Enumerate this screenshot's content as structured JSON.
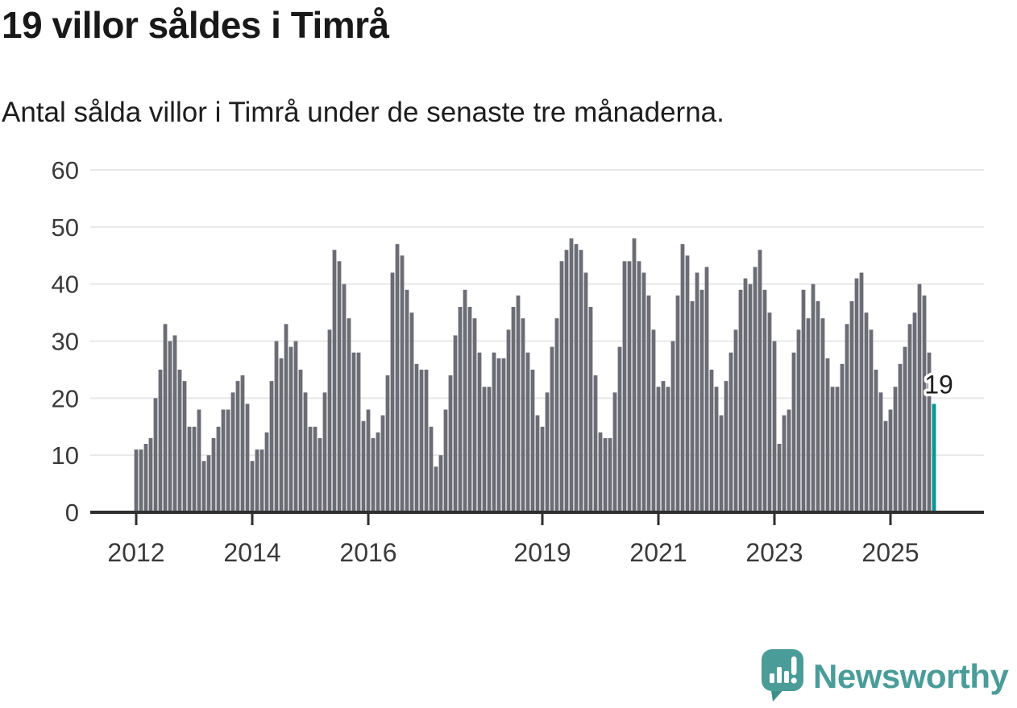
{
  "header": {
    "title": "19 villor såldes i Timrå",
    "subtitle": "Antal sålda villor i Timrå under de senaste tre månaderna."
  },
  "chart_data": {
    "type": "bar",
    "title": "19 villor såldes i Timrå",
    "xlabel": "",
    "ylabel": "",
    "x_start_month": "2012-01",
    "x_end_month": "2025-10",
    "values": [
      11,
      11,
      12,
      13,
      20,
      25,
      33,
      30,
      31,
      25,
      23,
      15,
      15,
      18,
      9,
      10,
      13,
      15,
      18,
      18,
      21,
      23,
      24,
      19,
      9,
      11,
      11,
      14,
      23,
      30,
      27,
      33,
      29,
      30,
      25,
      21,
      15,
      15,
      13,
      21,
      32,
      46,
      44,
      40,
      34,
      28,
      28,
      16,
      18,
      13,
      14,
      17,
      24,
      42,
      47,
      45,
      39,
      35,
      26,
      25,
      25,
      15,
      8,
      10,
      18,
      24,
      31,
      36,
      39,
      36,
      34,
      28,
      22,
      22,
      28,
      27,
      27,
      32,
      36,
      38,
      34,
      28,
      25,
      17,
      15,
      21,
      29,
      34,
      44,
      46,
      48,
      47,
      46,
      42,
      36,
      24,
      14,
      13,
      13,
      21,
      29,
      44,
      44,
      48,
      44,
      42,
      38,
      32,
      22,
      23,
      22,
      30,
      38,
      47,
      45,
      37,
      42,
      39,
      43,
      25,
      22,
      17,
      23,
      28,
      32,
      39,
      41,
      40,
      43,
      46,
      39,
      35,
      30,
      12,
      17,
      18,
      28,
      32,
      39,
      34,
      40,
      37,
      34,
      27,
      22,
      22,
      26,
      33,
      37,
      41,
      42,
      35,
      32,
      25,
      21,
      16,
      18,
      22,
      26,
      29,
      33,
      35,
      40,
      38,
      28,
      19
    ],
    "ylim": [
      0,
      60
    ],
    "y_ticks": [
      0,
      10,
      20,
      30,
      40,
      50,
      60
    ],
    "x_tick_years": [
      2012,
      2014,
      2016,
      2019,
      2021,
      2023,
      2025
    ],
    "grid": true,
    "legend": "none",
    "bar_color": "#6c6c75",
    "highlight_color": "#0b968f",
    "highlight_last_value": 19,
    "highlight_label": "19",
    "gridline_color": "#e8e8e8",
    "axis_color": "#2f2f2f",
    "tick_label_color": "#3a3a3a"
  },
  "footer": {
    "brand": "Newsworthy",
    "brand_color": "#4a9c99",
    "logo_icon": "speech-bubble-bar-chart-exclamation"
  }
}
